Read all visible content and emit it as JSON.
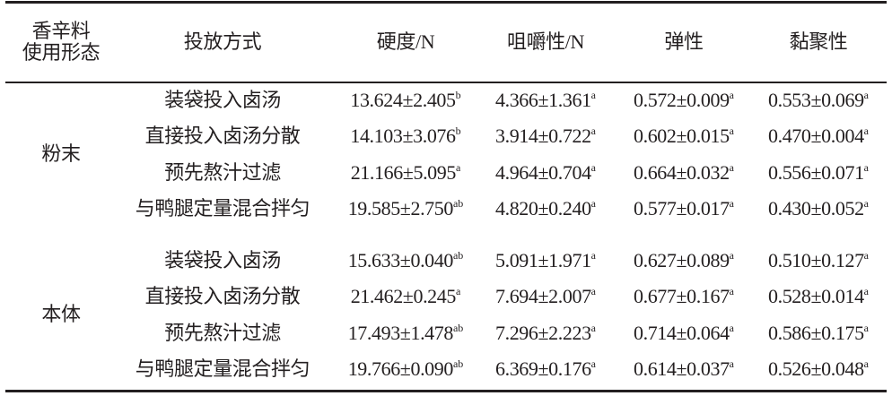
{
  "header": {
    "columns": [
      [
        "香辛料",
        "使用形态"
      ],
      "投放方式",
      "硬度/N",
      "咀嚼性/N",
      "弹性",
      "黏聚性"
    ]
  },
  "groups": [
    {
      "label": "粉末",
      "rows": [
        {
          "method": "装袋投入卤汤",
          "cells": [
            {
              "text": "13.624±2.405",
              "sup": "b"
            },
            {
              "text": "4.366±1.361",
              "sup": "a"
            },
            {
              "text": "0.572±0.009",
              "sup": "a"
            },
            {
              "text": "0.553±0.069",
              "sup": "a"
            }
          ]
        },
        {
          "method": "直接投入卤汤分散",
          "cells": [
            {
              "text": "14.103±3.076",
              "sup": "b"
            },
            {
              "text": "3.914±0.722",
              "sup": "a"
            },
            {
              "text": "0.602±0.015",
              "sup": "a"
            },
            {
              "text": "0.470±0.004",
              "sup": "a"
            }
          ]
        },
        {
          "method": "预先熬汁过滤",
          "cells": [
            {
              "text": "21.166±5.095",
              "sup": "a"
            },
            {
              "text": "4.964±0.704",
              "sup": "a"
            },
            {
              "text": "0.664±0.032",
              "sup": "a"
            },
            {
              "text": "0.556±0.071",
              "sup": "a"
            }
          ]
        },
        {
          "method": "与鸭腿定量混合拌匀",
          "cells": [
            {
              "text": "19.585±2.750",
              "sup": "ab"
            },
            {
              "text": "4.820±0.240",
              "sup": "a"
            },
            {
              "text": "0.577±0.017",
              "sup": "a"
            },
            {
              "text": "0.430±0.052",
              "sup": "a"
            }
          ]
        }
      ]
    },
    {
      "label": "本体",
      "rows": [
        {
          "method": "装袋投入卤汤",
          "cells": [
            {
              "text": "15.633±0.040",
              "sup": "ab"
            },
            {
              "text": "5.091±1.971",
              "sup": "a"
            },
            {
              "text": "0.627±0.089",
              "sup": "a"
            },
            {
              "text": "0.510±0.127",
              "sup": "a"
            }
          ]
        },
        {
          "method": "直接投入卤汤分散",
          "cells": [
            {
              "text": "21.462±0.245",
              "sup": "a"
            },
            {
              "text": "7.694±2.007",
              "sup": "a"
            },
            {
              "text": "0.677±0.167",
              "sup": "a"
            },
            {
              "text": "0.528±0.014",
              "sup": "a"
            }
          ]
        },
        {
          "method": "预先熬汁过滤",
          "cells": [
            {
              "text": "17.493±1.478",
              "sup": "ab"
            },
            {
              "text": "7.296±2.223",
              "sup": "a"
            },
            {
              "text": "0.714±0.064",
              "sup": "a"
            },
            {
              "text": "0.586±0.175",
              "sup": "a"
            }
          ]
        },
        {
          "method": "与鸭腿定量混合拌匀",
          "cells": [
            {
              "text": "19.766±0.090",
              "sup": "ab"
            },
            {
              "text": "6.369±0.176",
              "sup": "a"
            },
            {
              "text": "0.614±0.037",
              "sup": "a"
            },
            {
              "text": "0.526±0.048",
              "sup": "a"
            }
          ]
        }
      ]
    }
  ]
}
